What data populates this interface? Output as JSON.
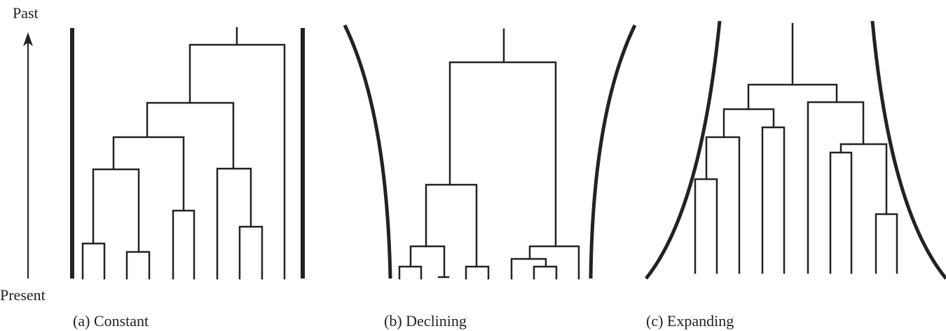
{
  "axis": {
    "top_label": "Past",
    "bottom_label": "Present"
  },
  "panels": [
    {
      "id": "a",
      "caption": "(a) Constant"
    },
    {
      "id": "b",
      "caption": "(b) Declining"
    },
    {
      "id": "c",
      "caption": "(c) Expanding"
    }
  ],
  "colors": {
    "line": "#222222"
  }
}
